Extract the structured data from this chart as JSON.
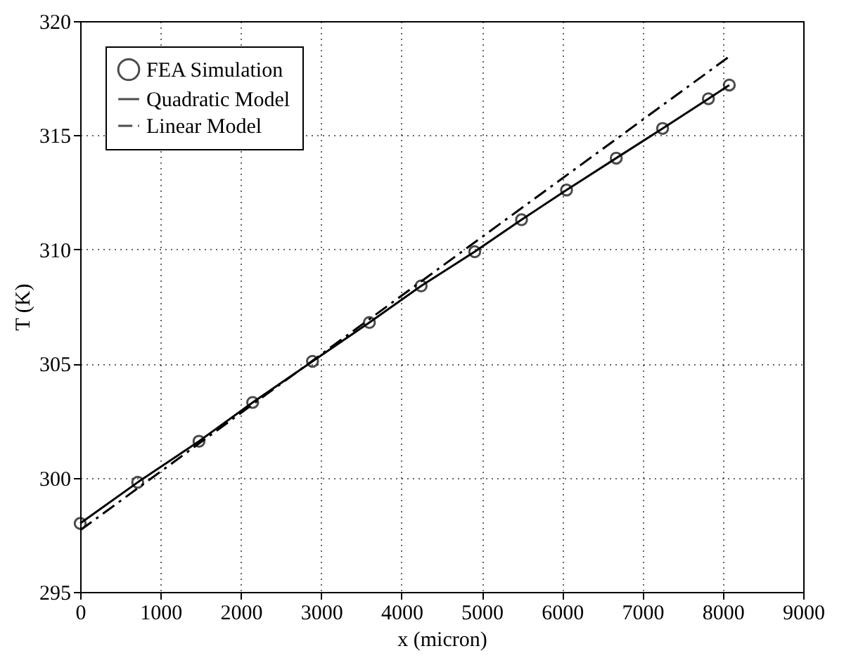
{
  "chart_data": {
    "type": "scatter",
    "xlabel": "x (micron)",
    "ylabel": "T (K)",
    "xlim": [
      0,
      9000
    ],
    "ylim": [
      295,
      320
    ],
    "xticks": [
      0,
      1000,
      2000,
      3000,
      4000,
      5000,
      6000,
      7000,
      8000,
      9000
    ],
    "yticks": [
      295,
      300,
      305,
      310,
      315,
      320
    ],
    "grid": true,
    "legend": "top left",
    "series": [
      {
        "name": "FEA Simulation",
        "marker": "circle",
        "color": "#000000",
        "x": [
          0,
          716,
          1479,
          2147,
          2892,
          3600,
          4244,
          4911,
          5494,
          6054,
          6673,
          7250,
          7820,
          8080
        ],
        "values": [
          298.0,
          299.8,
          301.6,
          303.3,
          305.1,
          306.8,
          308.4,
          309.9,
          311.3,
          312.6,
          314.0,
          315.3,
          316.6,
          317.2
        ]
      },
      {
        "name": "Quadratic Model",
        "type": "line",
        "line_style": "solid",
        "color": "#000000",
        "x": [
          0,
          716,
          1479,
          2147,
          2892,
          3600,
          4244,
          4911,
          5494,
          6054,
          6673,
          7250,
          7820,
          8080
        ],
        "values": [
          298.0,
          299.8,
          301.6,
          303.3,
          305.1,
          306.8,
          308.4,
          309.9,
          311.3,
          312.6,
          314.0,
          315.3,
          316.6,
          317.2
        ]
      },
      {
        "name": "Linear Model",
        "type": "line",
        "line_style": "dashdot",
        "color": "#000000",
        "x": [
          0,
          8100
        ],
        "values": [
          297.7,
          318.5
        ]
      }
    ]
  }
}
